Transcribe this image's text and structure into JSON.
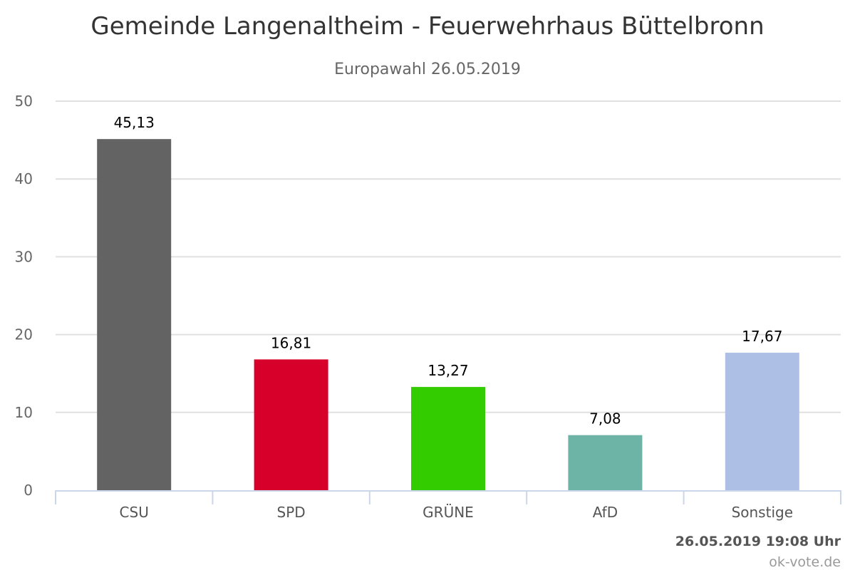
{
  "chart_data": {
    "type": "bar",
    "title": "Gemeinde Langenaltheim - Feuerwehrhaus Büttelbronn",
    "subtitle": "Europawahl 26.05.2019",
    "categories": [
      "CSU",
      "SPD",
      "GRÜNE",
      "AfD",
      "Sonstige"
    ],
    "values": [
      45.13,
      16.81,
      13.27,
      7.08,
      17.67
    ],
    "data_labels": [
      "45,13",
      "16,81",
      "13,27",
      "7,08",
      "17,67"
    ],
    "colors": [
      "#636363",
      "#d7002a",
      "#33cc00",
      "#6db3a6",
      "#adbfe4"
    ],
    "xlabel": "",
    "ylabel": "",
    "ylim": [
      0,
      50
    ],
    "yticks": [
      0,
      10,
      20,
      30,
      40,
      50
    ],
    "ytick_labels": [
      "0",
      "10",
      "20",
      "30",
      "40",
      "50"
    ],
    "grid": true,
    "legend": "none"
  },
  "credits": {
    "timestamp": "26.05.2019 19:08 Uhr",
    "site": "ok-vote.de"
  }
}
